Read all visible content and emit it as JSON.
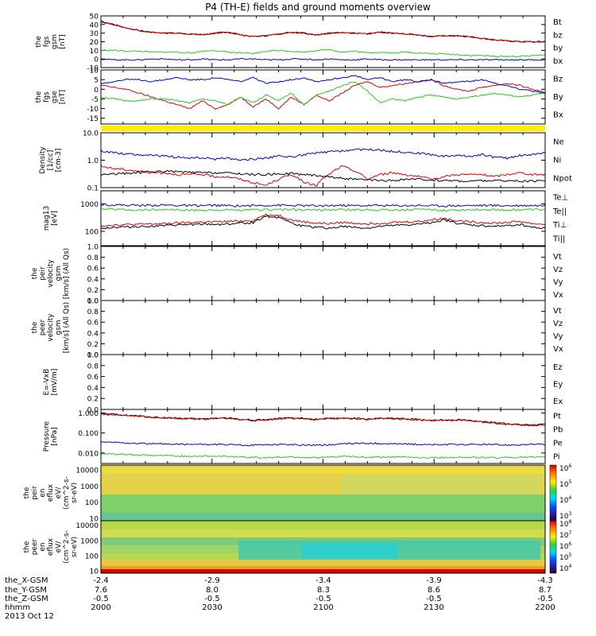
{
  "title": "P4 (TH-E) fields and ground moments overview",
  "colors": {
    "black": "#000000",
    "red": "#e00000",
    "green": "#22cc22",
    "blue": "#0000cc",
    "yellow": "#ffee00"
  },
  "chart_data": [
    {
      "type": "line",
      "panel": "fgs-gsm",
      "ylabel": [
        "the",
        "fgs",
        "gsm",
        "[nT]"
      ],
      "ylim": [
        -10,
        50
      ],
      "yticks": [
        "-10",
        "0",
        "10",
        "20",
        "30",
        "40",
        "50"
      ],
      "series": [
        {
          "name": "Bt",
          "color": "black",
          "values": [
            44,
            40,
            36,
            33,
            31,
            30,
            30,
            29,
            28,
            30,
            31,
            28,
            26,
            27,
            29,
            31,
            30,
            28,
            30,
            31,
            30,
            29,
            31,
            30,
            29,
            28,
            26,
            27,
            27,
            26,
            24,
            22,
            21,
            20,
            20,
            20
          ]
        },
        {
          "name": "bz",
          "color": "red",
          "values": [
            43,
            40,
            36,
            33,
            31,
            30,
            30,
            29,
            28,
            30,
            31,
            28,
            26,
            27,
            29,
            31,
            30,
            28,
            30,
            31,
            30,
            29,
            31,
            30,
            29,
            28,
            26,
            27,
            27,
            26,
            24,
            22,
            21,
            20,
            20,
            20
          ]
        },
        {
          "name": "by",
          "color": "green",
          "values": [
            10,
            10,
            9,
            9,
            8,
            8,
            8,
            7,
            9,
            10,
            8,
            7,
            6,
            9,
            10,
            9,
            8,
            10,
            11,
            8,
            9,
            7,
            8,
            7,
            8,
            7,
            6,
            6,
            5,
            4,
            4,
            3,
            3,
            3,
            4,
            5
          ]
        },
        {
          "name": "bx",
          "color": "blue",
          "values": [
            0,
            -1,
            -1,
            -1,
            0,
            0,
            -1,
            -1,
            0,
            -1,
            -1,
            0,
            0,
            -1,
            -1,
            0,
            0,
            -1,
            0,
            -1,
            -1,
            0,
            -1,
            -1,
            -1,
            -1,
            -1,
            -1,
            -1,
            -1,
            -1,
            -1,
            -1,
            -1,
            -1,
            -1
          ]
        }
      ]
    },
    {
      "type": "line",
      "panel": "fgs-gse",
      "ylabel": [
        "the",
        "fgs",
        "gse",
        "[nT]"
      ],
      "ylim": [
        -18,
        10
      ],
      "yticks": [
        "-15",
        "-10",
        "-5",
        "0",
        "5",
        "10"
      ],
      "series": [
        {
          "name": "Bz",
          "color": "red",
          "values": [
            2,
            1,
            0,
            -2,
            -4,
            -6,
            -8,
            -10,
            -6,
            -10,
            -8,
            -4,
            -9,
            -5,
            -10,
            -4,
            -8,
            -3,
            -6,
            -2,
            2,
            4,
            1,
            2,
            3,
            4,
            5,
            2,
            0,
            -1,
            1,
            2,
            3,
            2,
            0,
            -2
          ]
        },
        {
          "name": "By",
          "color": "green",
          "values": [
            -4,
            -5,
            -6,
            -6,
            -5,
            -5,
            -6,
            -7,
            -5,
            -6,
            -8,
            -4,
            -7,
            -3,
            -6,
            -2,
            -8,
            -3,
            -1,
            2,
            4,
            -1,
            -7,
            -5,
            -6,
            -4,
            -3,
            -4,
            -5,
            -4,
            -3,
            -2,
            -3,
            -4,
            -3,
            -2
          ]
        },
        {
          "name": "Bx",
          "color": "blue",
          "values": [
            3,
            4,
            5,
            5,
            4,
            5,
            6,
            5,
            5,
            6,
            5,
            4,
            6,
            3,
            4,
            5,
            6,
            4,
            5,
            6,
            7,
            5,
            6,
            4,
            5,
            4,
            5,
            3,
            4,
            4,
            5,
            3,
            2,
            0,
            -1,
            -2
          ]
        }
      ]
    },
    {
      "type": "line",
      "panel": "density",
      "ylabel": [
        "Density",
        "[1/cc]",
        "[cm-3]"
      ],
      "ylog": true,
      "ylim": [
        0.1,
        10
      ],
      "yticks": [
        "0.1",
        "1.0",
        "10.0"
      ],
      "series": [
        {
          "name": "Ne",
          "color": "red",
          "values": [
            0.6,
            0.5,
            0.45,
            0.4,
            0.35,
            0.35,
            0.3,
            0.3,
            0.3,
            0.25,
            0.25,
            0.2,
            0.15,
            0.12,
            0.2,
            0.3,
            0.15,
            0.12,
            0.3,
            0.6,
            0.4,
            0.2,
            0.3,
            0.35,
            0.3,
            0.25,
            0.2,
            0.25,
            0.3,
            0.3,
            0.3,
            0.25,
            0.3,
            0.35,
            0.3,
            0.3
          ]
        },
        {
          "name": "Ni",
          "color": "black",
          "values": [
            0.3,
            0.32,
            0.33,
            0.35,
            0.38,
            0.4,
            0.38,
            0.36,
            0.35,
            0.35,
            0.34,
            0.32,
            0.3,
            0.3,
            0.32,
            0.33,
            0.3,
            0.28,
            0.25,
            0.22,
            0.2,
            0.19,
            0.18,
            0.18,
            0.2,
            0.2,
            0.19,
            0.18,
            0.18,
            0.17,
            0.18,
            0.18,
            0.18,
            0.17,
            0.17,
            0.18
          ]
        },
        {
          "name": "Npot",
          "color": "blue",
          "values": [
            2.2,
            1.9,
            1.7,
            1.6,
            1.5,
            1.4,
            1.3,
            1.2,
            1.2,
            1.1,
            1.2,
            1.0,
            1.1,
            1.2,
            1.4,
            1.3,
            1.6,
            1.8,
            2.0,
            2.2,
            2.4,
            2.5,
            2.3,
            2.1,
            2.0,
            1.8,
            1.6,
            1.4,
            1.5,
            1.4,
            1.6,
            1.3,
            1.2,
            1.5,
            1.6,
            1.8
          ]
        }
      ]
    },
    {
      "type": "line",
      "panel": "temperature",
      "ylabel": [
        "mag13",
        "[eV]"
      ],
      "ylog": true,
      "ylim": [
        30,
        3000
      ],
      "yticks": [
        "100",
        "1000"
      ],
      "series": [
        {
          "name": "Te⊥",
          "color": "red",
          "values": [
            160,
            170,
            175,
            180,
            185,
            190,
            200,
            210,
            220,
            220,
            230,
            240,
            250,
            400,
            380,
            260,
            220,
            200,
            190,
            210,
            200,
            190,
            200,
            210,
            220,
            230,
            260,
            300,
            250,
            220,
            210,
            200,
            210,
            230,
            190,
            180
          ]
        },
        {
          "name": "Te||",
          "color": "black",
          "values": [
            130,
            140,
            145,
            150,
            155,
            160,
            170,
            175,
            180,
            180,
            185,
            200,
            210,
            350,
            330,
            200,
            150,
            140,
            130,
            150,
            140,
            130,
            150,
            160,
            170,
            180,
            210,
            260,
            200,
            170,
            160,
            150,
            160,
            180,
            140,
            130
          ]
        },
        {
          "name": "Ti⊥",
          "color": "blue",
          "values": [
            950,
            920,
            900,
            880,
            890,
            900,
            880,
            860,
            870,
            880,
            860,
            850,
            860,
            880,
            900,
            870,
            860,
            850,
            870,
            880,
            860,
            870,
            880,
            860,
            870,
            880,
            860,
            850,
            860,
            870,
            880,
            870,
            860,
            870,
            880,
            870
          ]
        },
        {
          "name": "Ti||",
          "color": "green",
          "values": [
            650,
            640,
            620,
            600,
            610,
            630,
            600,
            580,
            590,
            600,
            590,
            580,
            600,
            620,
            640,
            610,
            600,
            590,
            610,
            620,
            600,
            610,
            620,
            600,
            610,
            620,
            600,
            590,
            600,
            610,
            620,
            610,
            600,
            610,
            620,
            610
          ]
        }
      ]
    },
    {
      "type": "line",
      "panel": "peir-velocity",
      "ylabel": [
        "the",
        "peir",
        "velocity",
        "gsm",
        "[km/s] (All Qs)"
      ],
      "ylim": [
        0,
        1
      ],
      "yticks": [
        "0.0",
        "0.2",
        "0.4",
        "0.6",
        "0.8",
        "1.0"
      ],
      "legend": [
        "Vt",
        "Vz",
        "Vy",
        "Vx"
      ],
      "legend_colors": [
        "black",
        "red",
        "green",
        "blue"
      ],
      "series": []
    },
    {
      "type": "line",
      "panel": "peer-velocity",
      "ylabel": [
        "the",
        "peer",
        "velocity",
        "gsm",
        "[km/s] (All Qs)"
      ],
      "ylim": [
        0,
        1
      ],
      "yticks": [
        "0.0",
        "0.2",
        "0.4",
        "0.6",
        "0.8",
        "1.0"
      ],
      "legend": [
        "Vt",
        "Vz",
        "Vy",
        "Vx"
      ],
      "legend_colors": [
        "black",
        "red",
        "green",
        "blue"
      ],
      "series": []
    },
    {
      "type": "line",
      "panel": "efield",
      "ylabel": [
        "E=-VxB",
        "[mV/m]"
      ],
      "ylim": [
        0,
        1
      ],
      "yticks": [
        "0.0",
        "0.2",
        "0.4",
        "0.6",
        "0.8",
        "1.0"
      ],
      "legend": [
        "Ez",
        "Ey",
        "Ex"
      ],
      "legend_colors": [
        "red",
        "green",
        "blue"
      ],
      "series": []
    },
    {
      "type": "line",
      "panel": "pressure",
      "ylabel": [
        "Pressure",
        "[nPa]"
      ],
      "ylog": true,
      "ylim": [
        0.003,
        1.5
      ],
      "yticks": [
        "0.010",
        "0.100",
        "1.000"
      ],
      "series": [
        {
          "name": "Pt",
          "color": "black",
          "values": [
            0.9,
            0.85,
            0.78,
            0.7,
            0.62,
            0.58,
            0.55,
            0.52,
            0.5,
            0.55,
            0.56,
            0.48,
            0.44,
            0.46,
            0.52,
            0.56,
            0.53,
            0.48,
            0.53,
            0.56,
            0.53,
            0.5,
            0.55,
            0.53,
            0.5,
            0.48,
            0.43,
            0.45,
            0.45,
            0.43,
            0.38,
            0.33,
            0.3,
            0.26,
            0.26,
            0.26
          ]
        },
        {
          "name": "Pb",
          "color": "red",
          "values": [
            0.88,
            0.82,
            0.76,
            0.68,
            0.6,
            0.56,
            0.54,
            0.5,
            0.48,
            0.53,
            0.55,
            0.46,
            0.42,
            0.44,
            0.5,
            0.54,
            0.51,
            0.46,
            0.51,
            0.54,
            0.51,
            0.48,
            0.53,
            0.51,
            0.48,
            0.46,
            0.41,
            0.43,
            0.43,
            0.41,
            0.36,
            0.3,
            0.27,
            0.24,
            0.24,
            0.24
          ]
        },
        {
          "name": "Pe",
          "color": "green",
          "values": [
            0.009,
            0.009,
            0.0085,
            0.008,
            0.0075,
            0.0075,
            0.007,
            0.007,
            0.007,
            0.0068,
            0.0068,
            0.0065,
            0.006,
            0.0058,
            0.0062,
            0.0065,
            0.006,
            0.0058,
            0.0062,
            0.0068,
            0.0065,
            0.006,
            0.0062,
            0.0065,
            0.0062,
            0.006,
            0.0058,
            0.006,
            0.0062,
            0.006,
            0.006,
            0.0058,
            0.006,
            0.0062,
            0.006,
            0.006
          ]
        },
        {
          "name": "Pi",
          "color": "blue",
          "values": [
            0.035,
            0.034,
            0.032,
            0.03,
            0.029,
            0.028,
            0.028,
            0.027,
            0.027,
            0.027,
            0.026,
            0.025,
            0.025,
            0.026,
            0.027,
            0.026,
            0.025,
            0.025,
            0.026,
            0.028,
            0.03,
            0.031,
            0.03,
            0.029,
            0.028,
            0.027,
            0.026,
            0.026,
            0.027,
            0.026,
            0.027,
            0.026,
            0.025,
            0.026,
            0.027,
            0.027
          ]
        }
      ]
    },
    {
      "type": "heatmap",
      "panel": "peir-en-eflux",
      "ylabel": [
        "the",
        "peir",
        "en",
        "eflux",
        "eV/",
        "(cm^2-s-",
        "sr-eV)"
      ],
      "ylog": true,
      "ylim": [
        7,
        20000
      ],
      "yticks": [
        "10",
        "100",
        "1000",
        "10000"
      ],
      "colorbar_labels": [
        "10^3",
        "10^4",
        "10^5",
        "10^6"
      ],
      "colorbar_ticks": [
        "10",
        "10",
        "10",
        "10"
      ],
      "colorbar_exps": [
        "3",
        "4",
        "5",
        "6"
      ]
    },
    {
      "type": "heatmap",
      "panel": "peer-en-eflux",
      "ylabel": [
        "the",
        "peer",
        "en",
        "eflux",
        "eV/",
        "(cm^2-s-",
        "sr-eV)"
      ],
      "ylog": true,
      "ylim": [
        7,
        20000
      ],
      "yticks": [
        "10",
        "100",
        "1000",
        "10000"
      ],
      "colorbar_ticks": [
        "10",
        "10",
        "10",
        "10",
        "10"
      ],
      "colorbar_exps": [
        "4",
        "5",
        "6",
        "7",
        "8"
      ]
    }
  ],
  "x_axis": {
    "row_labels": [
      "the_X-GSM",
      "the_Y-GSM",
      "the_Z-GSM",
      "hhmm",
      "2013 Oct 12"
    ],
    "x_gsm": [
      "-2.4",
      "-2.9",
      "-3.4",
      "-3.9",
      "-4.3"
    ],
    "y_gsm": [
      "7.6",
      "8.0",
      "8.3",
      "8.6",
      "8.7"
    ],
    "z_gsm": [
      "-0.5",
      "-0.5",
      "-0.5",
      "-0.5",
      "-0.5"
    ],
    "hhmm": [
      "2000",
      "2030",
      "2100",
      "2130",
      "2200"
    ]
  }
}
